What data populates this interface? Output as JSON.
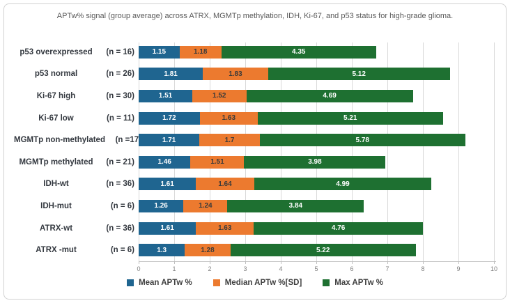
{
  "title": "APTw% signal (group average) across ATRX, MGMTp methylation, IDH, Ki-67, and p53 status for high-grade glioma.",
  "chart_data": {
    "type": "bar",
    "orientation": "horizontal",
    "stacked": true,
    "title": "APTw% signal (group average) across ATRX, MGMTp methylation, IDH, Ki-67, and p53 status for high-grade glioma.",
    "xlabel": "",
    "ylabel": "",
    "xlim": [
      0,
      10
    ],
    "xticks": [
      0,
      1,
      2,
      3,
      4,
      5,
      6,
      7,
      8,
      9,
      10
    ],
    "grid": true,
    "legend_position": "bottom",
    "categories": [
      "p53 overexpressed",
      "p53 normal",
      "Ki-67 high",
      "Ki-67 low",
      "MGMTp non-methylated",
      "MGMTp methylated",
      "IDH-wt",
      "IDH-mut",
      "ATRX-wt",
      "ATRX -mut"
    ],
    "counts": [
      "(n = 16)",
      "(n = 26)",
      "(n = 30)",
      "(n = 11)",
      "(n =17)",
      "(n = 21)",
      "(n = 36)",
      "(n = 6)",
      "(n = 36)",
      "(n = 6)"
    ],
    "series": [
      {
        "name": "Mean APTw %",
        "color": "#1F6590",
        "label_color": "#FFFFFF",
        "values": [
          1.15,
          1.81,
          1.51,
          1.72,
          1.71,
          1.46,
          1.61,
          1.26,
          1.61,
          1.3
        ]
      },
      {
        "name": "Median APTw %[SD]",
        "color": "#EC7A2F",
        "label_color": "#3A3A3A",
        "values": [
          1.18,
          1.83,
          1.52,
          1.63,
          1.7,
          1.51,
          1.64,
          1.24,
          1.63,
          1.28
        ]
      },
      {
        "name": "Max APTw %",
        "color": "#1E7031",
        "label_color": "#FFFFFF",
        "values": [
          4.35,
          5.12,
          4.69,
          5.21,
          5.78,
          3.98,
          4.99,
          3.84,
          4.76,
          5.22
        ]
      }
    ]
  },
  "colors": {
    "grid": "#D9D9D9",
    "axis_text": "#808080",
    "title_text": "#595959",
    "category_text": "#33383F",
    "legend_text": "#3F3F3F",
    "frame_border": "#D2D2D2"
  }
}
